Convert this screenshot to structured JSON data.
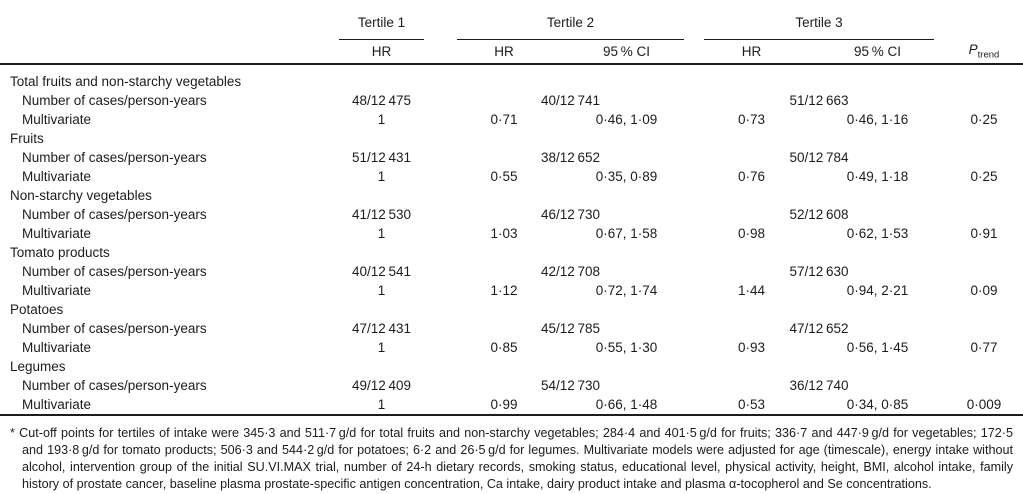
{
  "table": {
    "header": {
      "tertile1": {
        "label": "Tertile 1",
        "cols": [
          "HR"
        ]
      },
      "tertile2": {
        "label": "Tertile 2",
        "cols": [
          "HR",
          "95 % CI"
        ]
      },
      "tertile3": {
        "label": "Tertile 3",
        "cols": [
          "HR",
          "95 % CI"
        ]
      },
      "p_trend": {
        "symbol": "P",
        "sub": "trend"
      }
    },
    "row_labels": {
      "cases": "Number of cases/person-years",
      "multivariate": "Multivariate"
    },
    "groups": [
      {
        "name": "Total fruits and non-starchy vegetables",
        "cases": {
          "label": "Number of cases/person-years",
          "values": [
            "48/12 475",
            "40/12 741",
            "51/12 663"
          ]
        },
        "multivariate": {
          "label": "Multivariate",
          "values": [
            "1",
            "0·71",
            "0·46, 1·09",
            "0·73",
            "0·46, 1·16",
            "0·25"
          ]
        }
      },
      {
        "name": "Fruits",
        "cases": {
          "label": "Number of cases/person-years",
          "values": [
            "51/12 431",
            "38/12 652",
            "50/12 784"
          ]
        },
        "multivariate": {
          "label": "Multivariate",
          "values": [
            "1",
            "0·55",
            "0·35, 0·89",
            "0·76",
            "0·49, 1·18",
            "0·25"
          ]
        }
      },
      {
        "name": "Non-starchy vegetables",
        "cases": {
          "label": "Number of cases/person-years",
          "values": [
            "41/12 530",
            "46/12 730",
            "52/12 608"
          ]
        },
        "multivariate": {
          "label": "Multivariate",
          "values": [
            "1",
            "1·03",
            "0·67, 1·58",
            "0·98",
            "0·62, 1·53",
            "0·91"
          ]
        }
      },
      {
        "name": "Tomato products",
        "cases": {
          "label": "Number of cases/person-years",
          "values": [
            "40/12 541",
            "42/12 708",
            "57/12 630"
          ]
        },
        "multivariate": {
          "label": "Multivariate",
          "values": [
            "1",
            "1·12",
            "0·72, 1·74",
            "1·44",
            "0·94, 2·21",
            "0·09"
          ]
        }
      },
      {
        "name": "Potatoes",
        "cases": {
          "label": "Number of cases/person-years",
          "values": [
            "47/12 431",
            "45/12 785",
            "47/12 652"
          ]
        },
        "multivariate": {
          "label": "Multivariate",
          "values": [
            "1",
            "0·85",
            "0·55, 1·30",
            "0·93",
            "0·56, 1·45",
            "0·77"
          ]
        }
      },
      {
        "name": "Legumes",
        "cases": {
          "label": "Number of cases/person-years",
          "values": [
            "49/12 409",
            "54/12 730",
            "36/12 740"
          ]
        },
        "multivariate": {
          "label": "Multivariate",
          "values": [
            "1",
            "0·99",
            "0·66, 1·48",
            "0·53",
            "0·34, 0·85",
            "0·009"
          ]
        }
      }
    ]
  },
  "footnote": {
    "marker": "*",
    "text": "Cut-off points for tertiles of intake were 345·3 and 511·7 g/d for total fruits and non-starchy vegetables; 284·4 and 401·5 g/d for fruits; 336·7 and 447·9 g/d for vegetables; 172·5 and 193·8 g/d for tomato products; 506·3 and 544·2 g/d for potatoes; 6·2 and 26·5 g/d for legumes. Multivariate models were adjusted for age (timescale), energy intake without alcohol, intervention group of the initial SU.VI.MAX trial, number of 24-h dietary records, smoking status, educational level, physical activity, height, BMI, alcohol intake, family history of prostate cancer, baseline plasma prostate-specific antigen concentration, Ca intake, dairy product intake and plasma α-tocopherol and Se concentrations."
  }
}
